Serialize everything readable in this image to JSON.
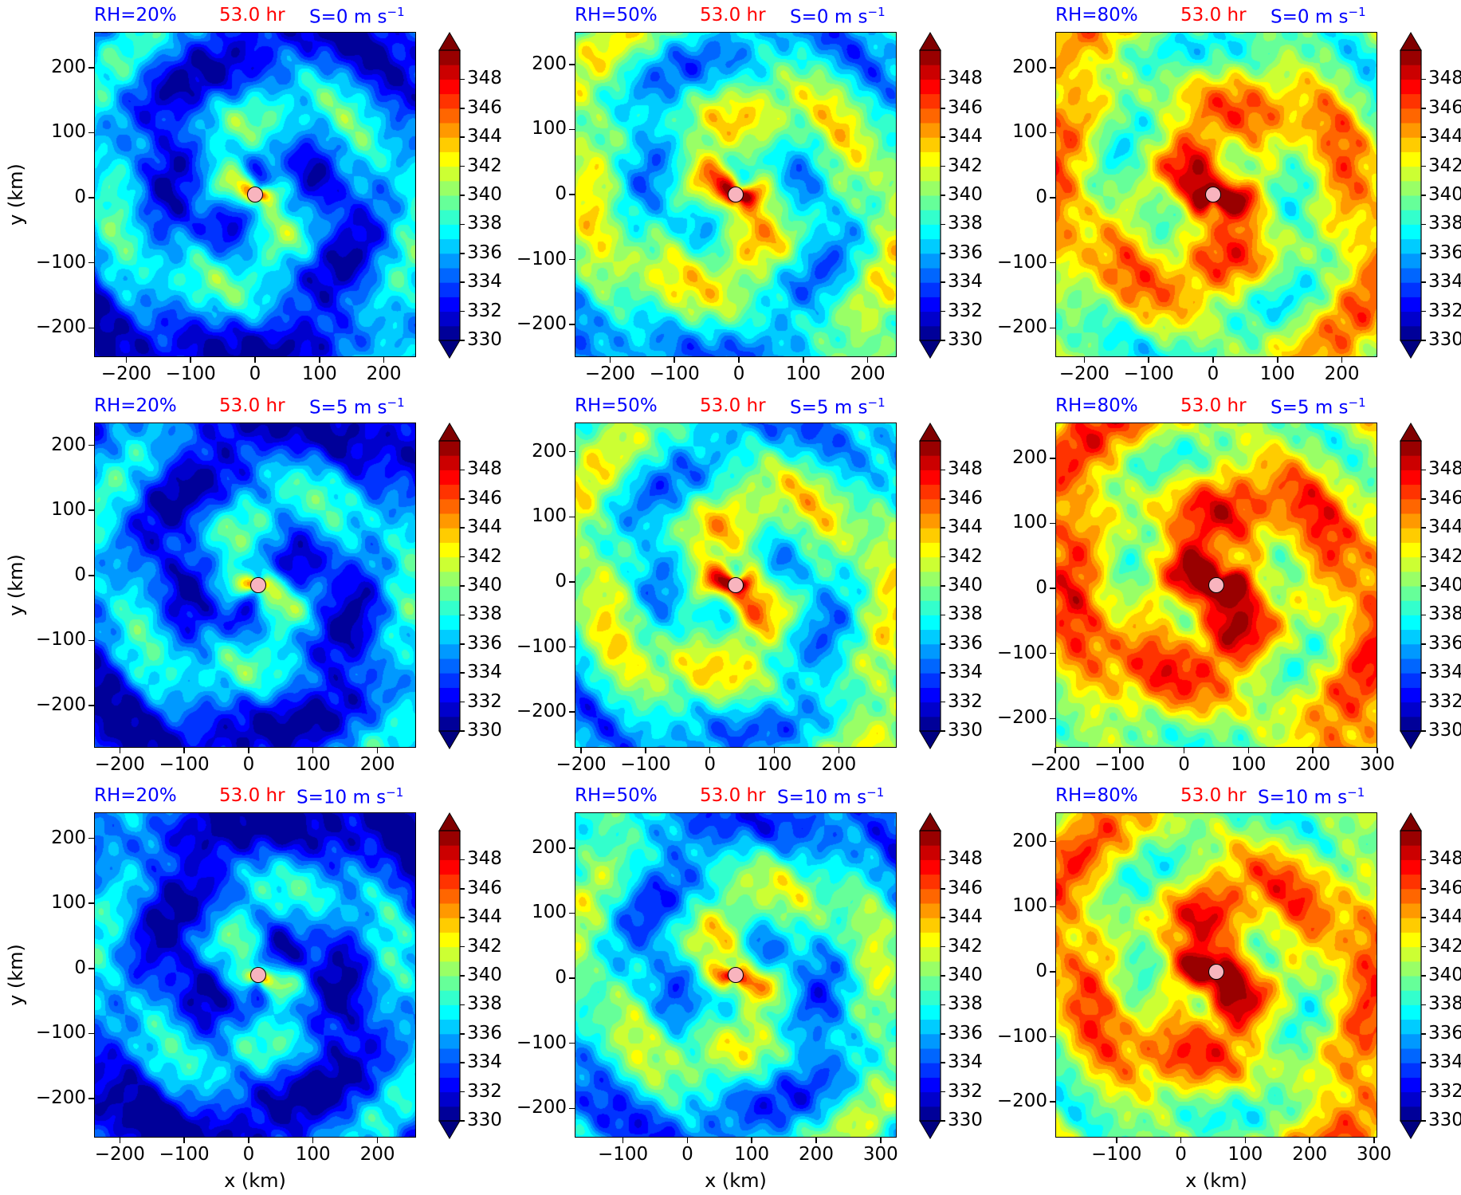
{
  "chart_data": {
    "type": "heatmap",
    "time_label": "53.0 hr",
    "colorbar": {
      "min": 330,
      "max": 350,
      "step": 1,
      "ticks": [
        "330",
        "332",
        "334",
        "336",
        "338",
        "340",
        "342",
        "344",
        "346",
        "348"
      ],
      "extend": "both",
      "colormap": "jet"
    },
    "xlabel": "x (km)",
    "ylabel": "y (km)",
    "panels": [
      {
        "rh": "RH=20%",
        "shear": "S=0 m s",
        "shear_exp": "−1",
        "xticks": [
          "−200",
          "−100",
          "0",
          "100",
          "200"
        ],
        "yticks": [
          "200",
          "100",
          "0",
          "−100",
          "−200"
        ],
        "xlim": [
          -250,
          250
        ],
        "ylim": [
          -245,
          255
        ],
        "center": [
          0,
          5
        ],
        "warmth": 0.15,
        "seed": 11
      },
      {
        "rh": "RH=50%",
        "shear": "S=0 m s",
        "shear_exp": "−1",
        "xticks": [
          "−200",
          "−100",
          "0",
          "100",
          "200"
        ],
        "yticks": [
          "200",
          "100",
          "0",
          "−100",
          "−200"
        ],
        "xlim": [
          -255,
          245
        ],
        "ylim": [
          -250,
          250
        ],
        "center": [
          -5,
          0
        ],
        "warmth": 0.45,
        "seed": 23
      },
      {
        "rh": "RH=80%",
        "shear": "S=0 m s",
        "shear_exp": "−1",
        "xticks": [
          "−200",
          "−100",
          "0",
          "100",
          "200"
        ],
        "yticks": [
          "200",
          "100",
          "0",
          "−100",
          "−200"
        ],
        "xlim": [
          -245,
          255
        ],
        "ylim": [
          -245,
          255
        ],
        "center": [
          0,
          5
        ],
        "warmth": 0.7,
        "seed": 37
      },
      {
        "rh": "RH=20%",
        "shear": "S=5 m s",
        "shear_exp": "−1",
        "xticks": [
          "−200",
          "−100",
          "0",
          "100",
          "200"
        ],
        "yticks": [
          "200",
          "100",
          "0",
          "−100",
          "−200"
        ],
        "xlim": [
          -240,
          260
        ],
        "ylim": [
          -265,
          235
        ],
        "center": [
          15,
          -15
        ],
        "warmth": 0.12,
        "seed": 41
      },
      {
        "rh": "RH=50%",
        "shear": "S=5 m s",
        "shear_exp": "−1",
        "xticks": [
          "−200",
          "−100",
          "0",
          "100",
          "200"
        ],
        "yticks": [
          "200",
          "100",
          "0",
          "−100",
          "−200"
        ],
        "xlim": [
          -210,
          290
        ],
        "ylim": [
          -255,
          245
        ],
        "center": [
          40,
          -5
        ],
        "warmth": 0.45,
        "seed": 53
      },
      {
        "rh": "RH=80%",
        "shear": "S=5 m s",
        "shear_exp": "−1",
        "xticks": [
          "−200",
          "−100",
          "0",
          "100",
          "200",
          "300"
        ],
        "yticks": [
          "200",
          "100",
          "0",
          "−100",
          "−200"
        ],
        "xlim": [
          -200,
          300
        ],
        "ylim": [
          -245,
          255
        ],
        "center": [
          50,
          5
        ],
        "warmth": 0.8,
        "seed": 67
      },
      {
        "rh": "RH=20%",
        "shear": "S=10 m s",
        "shear_exp": "−1",
        "xticks": [
          "−200",
          "−100",
          "0",
          "100",
          "200"
        ],
        "yticks": [
          "200",
          "100",
          "0",
          "−100",
          "−200"
        ],
        "xlim": [
          -240,
          260
        ],
        "ylim": [
          -260,
          240
        ],
        "center": [
          15,
          -10
        ],
        "warmth": 0.08,
        "seed": 71
      },
      {
        "rh": "RH=50%",
        "shear": "S=10 m s",
        "shear_exp": "−1",
        "xticks": [
          "−100",
          "0",
          "100",
          "200",
          "300"
        ],
        "yticks": [
          "200",
          "100",
          "0",
          "−100",
          "−200"
        ],
        "xlim": [
          -175,
          325
        ],
        "ylim": [
          -245,
          255
        ],
        "center": [
          75,
          5
        ],
        "warmth": 0.35,
        "seed": 83
      },
      {
        "rh": "RH=80%",
        "shear": "S=10 m s",
        "shear_exp": "−1",
        "xticks": [
          "−100",
          "0",
          "100",
          "200",
          "300"
        ],
        "yticks": [
          "200",
          "100",
          "0",
          "−100",
          "−200"
        ],
        "xlim": [
          -195,
          305
        ],
        "ylim": [
          -255,
          245
        ],
        "center": [
          55,
          0
        ],
        "warmth": 0.75,
        "seed": 97
      }
    ]
  }
}
